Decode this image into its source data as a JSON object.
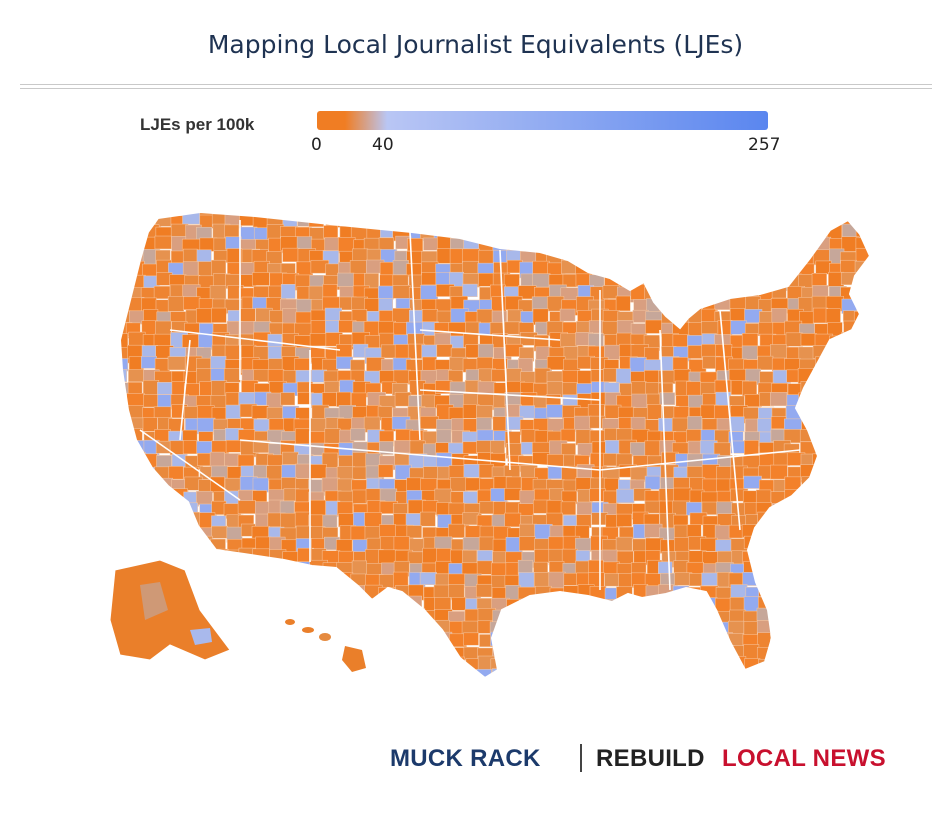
{
  "title": "Mapping Local Journalist Equivalents (LJEs)",
  "legend": {
    "label": "LJEs per 100k",
    "min": 0,
    "mid": 40,
    "max": 257,
    "min_label": "0",
    "mid_label": "40",
    "max_label": "257",
    "color_low": "#f07d23",
    "color_mid": "#b9c6f4",
    "color_high": "#5a86ef"
  },
  "map": {
    "type": "choropleth",
    "geography": "US counties",
    "metric": "LJEs per 100k"
  },
  "branding": {
    "logo1": "MUCK RACK",
    "logo2_part1": "REBUILD",
    "logo2_part2": "LOCAL NEWS",
    "logo1_color": "#1c3a6b",
    "logo2_part1_color": "#222222",
    "logo2_part2_color": "#c8102e"
  }
}
